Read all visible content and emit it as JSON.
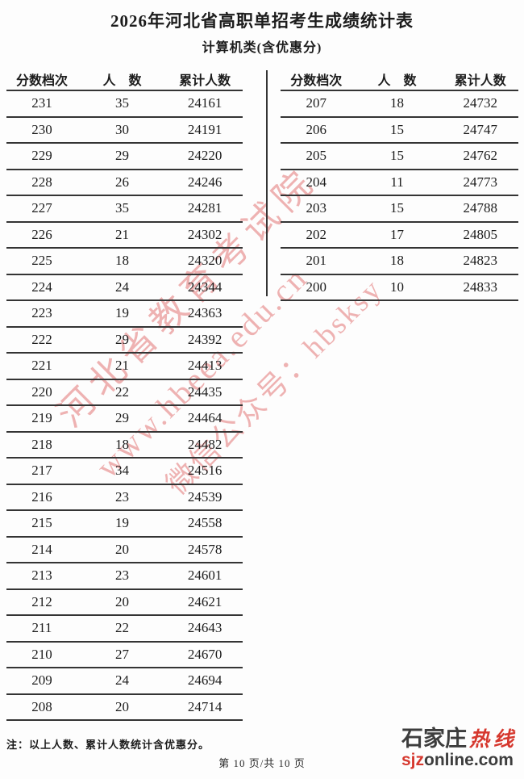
{
  "title": "2026年河北省高职单招考生成绩统计表",
  "subtitle": "计算机类(含优惠分)",
  "table_headers": [
    "分数档次",
    "人　数",
    "累计人数"
  ],
  "tables": [
    {
      "rows": [
        [
          "231",
          "35",
          "24161"
        ],
        [
          "230",
          "30",
          "24191"
        ],
        [
          "229",
          "29",
          "24220"
        ],
        [
          "228",
          "26",
          "24246"
        ],
        [
          "227",
          "35",
          "24281"
        ],
        [
          "226",
          "21",
          "24302"
        ],
        [
          "225",
          "18",
          "24320"
        ],
        [
          "224",
          "24",
          "24344"
        ],
        [
          "223",
          "19",
          "24363"
        ],
        [
          "222",
          "29",
          "24392"
        ],
        [
          "221",
          "21",
          "24413"
        ],
        [
          "220",
          "22",
          "24435"
        ],
        [
          "219",
          "29",
          "24464"
        ],
        [
          "218",
          "18",
          "24482"
        ],
        [
          "217",
          "34",
          "24516"
        ],
        [
          "216",
          "23",
          "24539"
        ],
        [
          "215",
          "19",
          "24558"
        ],
        [
          "214",
          "20",
          "24578"
        ],
        [
          "213",
          "23",
          "24601"
        ],
        [
          "212",
          "20",
          "24621"
        ],
        [
          "211",
          "22",
          "24643"
        ],
        [
          "210",
          "27",
          "24670"
        ],
        [
          "209",
          "24",
          "24694"
        ],
        [
          "208",
          "20",
          "24714"
        ]
      ]
    },
    {
      "rows": [
        [
          "207",
          "18",
          "24732"
        ],
        [
          "206",
          "15",
          "24747"
        ],
        [
          "205",
          "15",
          "24762"
        ],
        [
          "204",
          "11",
          "24773"
        ],
        [
          "203",
          "15",
          "24788"
        ],
        [
          "202",
          "17",
          "24805"
        ],
        [
          "201",
          "18",
          "24823"
        ],
        [
          "200",
          "10",
          "24833"
        ]
      ]
    }
  ],
  "note": "注：以上人数、累计人数统计含优惠分。",
  "footer": "第 10 页/共 10 页",
  "watermark": {
    "lines": [
      "河北省教育考试院",
      "www.hbeea.edu.cn",
      "微信公众号：hbsksy"
    ],
    "color": "#e06a6a"
  },
  "logo": {
    "cn_dark": "石家庄",
    "cn_red": "热线",
    "latin_red": "sjz",
    "latin_dark": "online.com"
  },
  "colors": {
    "text": "#1c1c1c",
    "table_border": "#343434",
    "watermark_pink": "#e06a6a",
    "logo_red": "#d6382e",
    "logo_dark": "#3d3d3d"
  }
}
